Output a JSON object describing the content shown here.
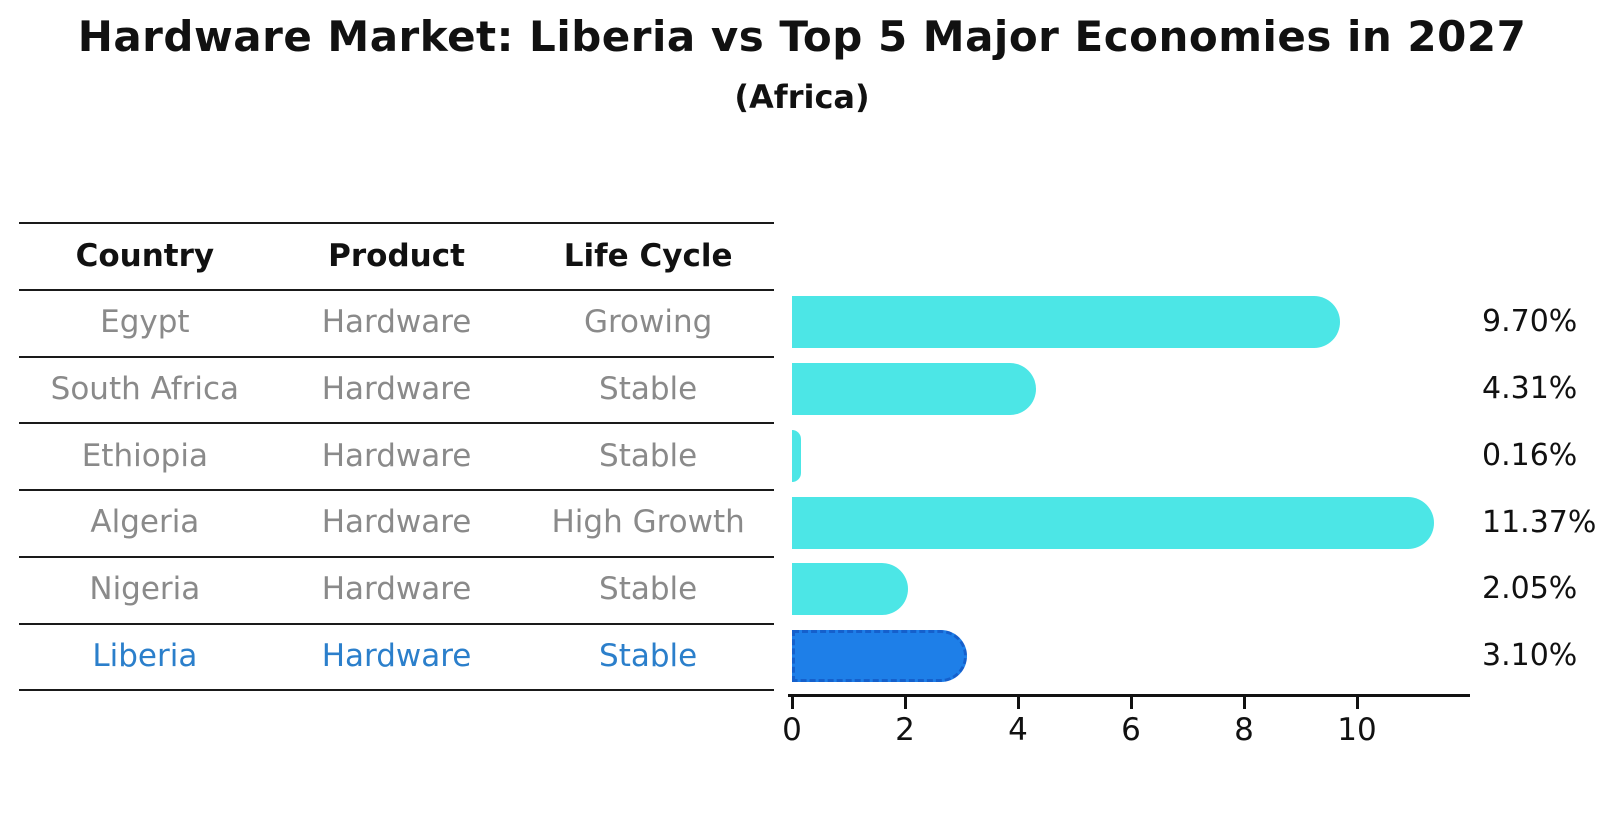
{
  "title": "Hardware Market: Liberia vs Top 5 Major Economies in 2027",
  "subtitle": "(Africa)",
  "table": {
    "headers": [
      "Country",
      "Product",
      "Life Cycle"
    ],
    "rows": [
      {
        "country": "Egypt",
        "product": "Hardware",
        "life_cycle": "Growing",
        "highlight": false
      },
      {
        "country": "South Africa",
        "product": "Hardware",
        "life_cycle": "Stable",
        "highlight": false
      },
      {
        "country": "Ethiopia",
        "product": "Hardware",
        "life_cycle": "Stable",
        "highlight": false
      },
      {
        "country": "Algeria",
        "product": "Hardware",
        "life_cycle": "High Growth",
        "highlight": false
      },
      {
        "country": "Nigeria",
        "product": "Hardware",
        "life_cycle": "Stable",
        "highlight": false
      },
      {
        "country": "Liberia",
        "product": "Hardware",
        "life_cycle": "Stable",
        "highlight": true
      }
    ]
  },
  "chart_data": {
    "type": "bar",
    "orientation": "horizontal",
    "title": "Hardware Market: Liberia vs Top 5 Major Economies in 2027",
    "subtitle": "(Africa)",
    "categories": [
      "Egypt",
      "South Africa",
      "Ethiopia",
      "Algeria",
      "Nigeria",
      "Liberia"
    ],
    "values": [
      9.7,
      4.31,
      0.16,
      11.37,
      2.05,
      3.1
    ],
    "value_labels": [
      "9.70%",
      "4.31%",
      "0.16%",
      "11.37%",
      "2.05%",
      "3.10%"
    ],
    "x_ticks": [
      0,
      2,
      4,
      6,
      8,
      10
    ],
    "xlim": [
      0,
      12
    ],
    "grid": false,
    "legend": false,
    "highlight_index": 5
  },
  "colors": {
    "bar": "#4ce6e6",
    "highlight_bar": "#1e7fe8",
    "highlight_text": "#2b7fcb",
    "text": "#111111",
    "muted_text": "#8a8a8a",
    "line": "#1a1a1a"
  }
}
